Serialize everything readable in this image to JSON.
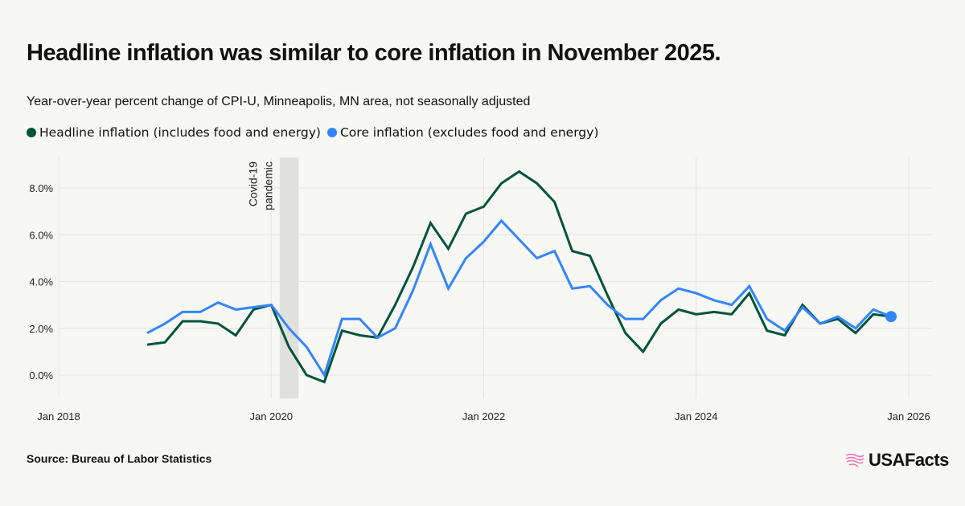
{
  "title": "Headline inflation was similar to core inflation in November 2025.",
  "subtitle": "Year-over-year percent change of CPI-U, Minneapolis, MN area, not seasonally adjusted",
  "source": "Source: Bureau of Labor Statistics",
  "logo": "USAFacts",
  "colors": {
    "headline": "#00543c",
    "core": "#3385fc",
    "background": "#f7f7f3",
    "grid": "#e4e4e0",
    "covid_band": "#e0e0dc",
    "logo": "#f06eb4"
  },
  "chart_data": {
    "type": "line",
    "title": "Headline inflation was similar to core inflation in November 2025.",
    "subtitle": "Year-over-year percent change of CPI-U, Minneapolis, MN area, not seasonally adjusted",
    "xlabel": "",
    "ylabel": "",
    "ylim": [
      -1,
      9.3
    ],
    "xlim": [
      "2018-01",
      "2026-01"
    ],
    "grid": true,
    "legend": "top-left",
    "y_ticks": [
      0,
      2,
      4,
      6,
      8
    ],
    "y_tick_labels": [
      "0.0%",
      "2.0%",
      "4.0%",
      "6.0%",
      "8.0%"
    ],
    "x_ticks": [
      "2018-01",
      "2020-01",
      "2022-01",
      "2024-01",
      "2026-01"
    ],
    "x_tick_labels": [
      "Jan 2018",
      "Jan 2020",
      "Jan 2022",
      "Jan 2024",
      "Jan 2026"
    ],
    "annotation": {
      "label": "Covid-19 pandemic",
      "label_lines": [
        "Covid-19",
        "pandemic"
      ],
      "start": "2020-02",
      "end": "2020-04"
    },
    "x": [
      "2018-11",
      "2019-01",
      "2019-03",
      "2019-05",
      "2019-07",
      "2019-09",
      "2019-11",
      "2020-01",
      "2020-03",
      "2020-05",
      "2020-07",
      "2020-09",
      "2020-11",
      "2021-01",
      "2021-03",
      "2021-05",
      "2021-07",
      "2021-09",
      "2021-11",
      "2022-01",
      "2022-03",
      "2022-05",
      "2022-07",
      "2022-09",
      "2022-11",
      "2023-01",
      "2023-03",
      "2023-05",
      "2023-07",
      "2023-09",
      "2023-11",
      "2024-01",
      "2024-03",
      "2024-05",
      "2024-07",
      "2024-09",
      "2024-11",
      "2025-01",
      "2025-03",
      "2025-05",
      "2025-07",
      "2025-09",
      "2025-11"
    ],
    "series": [
      {
        "name": "Headline inflation (includes food and energy)",
        "color": "#00543c",
        "values": [
          1.3,
          1.4,
          2.3,
          2.3,
          2.2,
          1.7,
          2.8,
          3.0,
          1.2,
          0.0,
          -0.3,
          1.9,
          1.7,
          1.6,
          3.0,
          4.6,
          6.5,
          5.4,
          6.9,
          7.2,
          8.2,
          8.7,
          8.2,
          7.4,
          5.3,
          5.1,
          3.4,
          1.8,
          1.0,
          2.2,
          2.8,
          2.6,
          2.7,
          2.6,
          3.5,
          1.9,
          1.7,
          3.0,
          2.2,
          2.4,
          1.8,
          2.6,
          2.5
        ]
      },
      {
        "name": "Core inflation (excludes food and energy)",
        "color": "#3385fc",
        "values": [
          1.8,
          2.2,
          2.7,
          2.7,
          3.1,
          2.8,
          2.9,
          3.0,
          2.0,
          1.2,
          0.0,
          2.4,
          2.4,
          1.6,
          2.0,
          3.6,
          5.6,
          3.7,
          5.0,
          5.7,
          6.6,
          5.8,
          5.0,
          5.3,
          3.7,
          3.8,
          3.0,
          2.4,
          2.4,
          3.2,
          3.7,
          3.5,
          3.2,
          3.0,
          3.8,
          2.4,
          1.9,
          2.9,
          2.2,
          2.5,
          2.0,
          2.8,
          2.5
        ]
      }
    ]
  }
}
